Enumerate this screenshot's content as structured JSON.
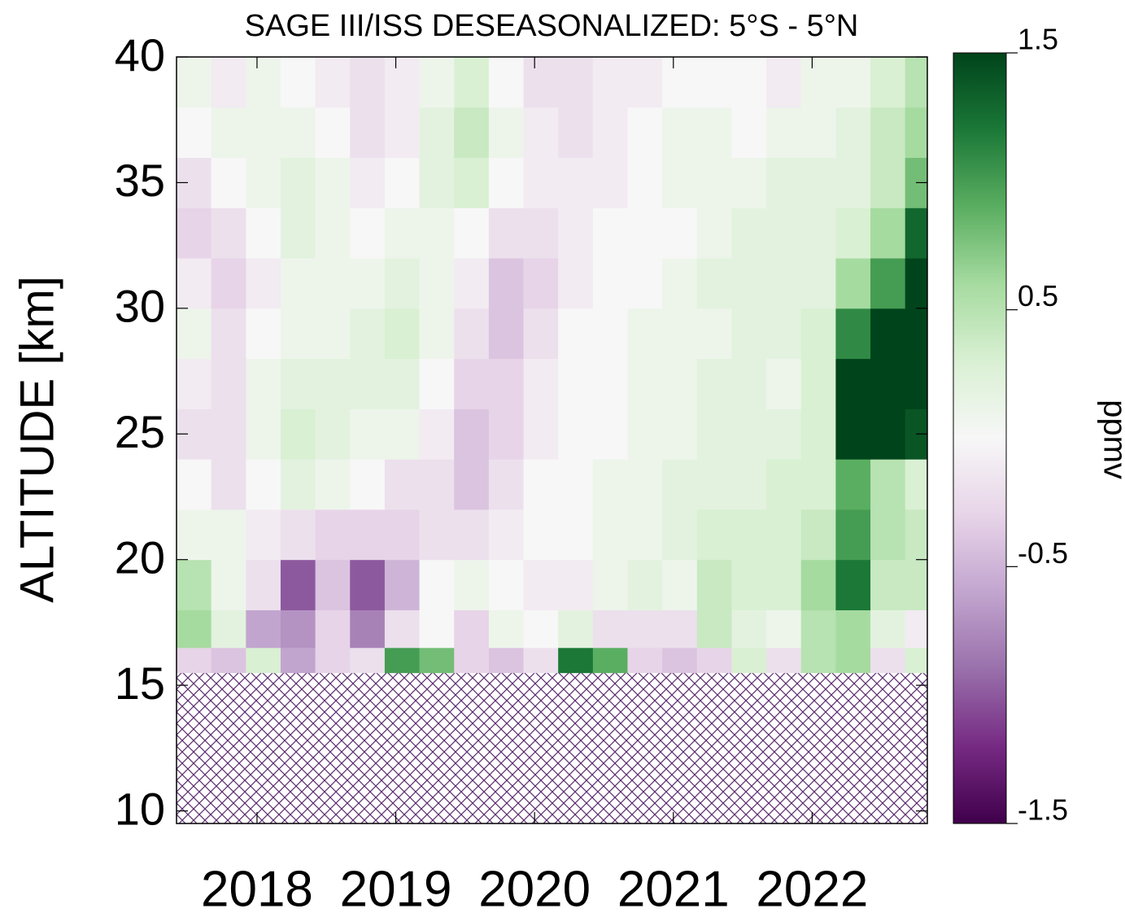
{
  "chart_data": {
    "type": "heatmap",
    "title": "SAGE III/ISS  DESEASONALIZED: 5°S - 5°N",
    "ylabel": "ALTITUDE [km]",
    "colorbar_label": "ppmv",
    "xlim": [
      2017.42,
      2022.83
    ],
    "xticks": [
      2018,
      2019,
      2020,
      2021,
      2022
    ],
    "ylim": [
      9.5,
      40
    ],
    "yticks": [
      10,
      15,
      20,
      25,
      30,
      35,
      40
    ],
    "clim": [
      -1.5,
      1.5
    ],
    "colorbar_ticks": [
      -1.5,
      -0.5,
      0.5,
      1.5
    ],
    "colormap": [
      "#40004b",
      "#762a83",
      "#9970ab",
      "#c2a5cf",
      "#e7d4e8",
      "#f7f7f7",
      "#d9f0d3",
      "#a6dba0",
      "#5aae61",
      "#1b7837",
      "#00441b"
    ],
    "null_hatch_color": "#5b2c6f",
    "x_edges": [
      2017.42,
      2017.67,
      2017.92,
      2018.17,
      2018.42,
      2018.67,
      2018.92,
      2019.17,
      2019.42,
      2019.67,
      2019.92,
      2020.17,
      2020.42,
      2020.67,
      2020.92,
      2021.17,
      2021.42,
      2021.67,
      2021.92,
      2022.17,
      2022.42,
      2022.67,
      2022.83
    ],
    "y_edges": [
      9.5,
      15.5,
      16.5,
      18,
      20,
      22,
      24,
      26,
      28,
      30,
      32,
      34,
      36,
      38,
      40
    ],
    "values": [
      [
        null,
        null,
        null,
        null,
        null,
        null,
        null,
        null,
        null,
        null,
        null,
        null,
        null,
        null,
        null,
        null,
        null,
        null,
        null,
        null,
        null,
        null
      ],
      [
        -0.3,
        -0.4,
        0.3,
        -0.6,
        -0.3,
        -0.2,
        1.0,
        0.8,
        -0.3,
        -0.4,
        -0.2,
        1.2,
        0.9,
        -0.3,
        -0.4,
        -0.3,
        0.3,
        -0.2,
        0.5,
        0.6,
        -0.2,
        0.3
      ],
      [
        0.6,
        0.2,
        -0.6,
        -0.7,
        -0.3,
        -0.8,
        -0.2,
        0,
        -0.3,
        0.1,
        0,
        0.2,
        -0.2,
        -0.2,
        -0.2,
        0.4,
        0.2,
        0.1,
        0.5,
        0.6,
        0.2,
        -0.1
      ],
      [
        0.5,
        0.1,
        -0.2,
        -1.0,
        -0.4,
        -1.0,
        -0.5,
        0,
        0.1,
        0,
        -0.1,
        -0.1,
        0.1,
        0.2,
        0.1,
        0.4,
        0.3,
        0.3,
        0.6,
        1.2,
        0.4,
        0.4
      ],
      [
        0.1,
        0.1,
        -0.1,
        -0.2,
        -0.3,
        -0.3,
        -0.3,
        -0.2,
        -0.2,
        -0.1,
        0,
        0,
        0.1,
        0.1,
        0.2,
        0.3,
        0.3,
        0.3,
        0.4,
        1.0,
        0.5,
        0.4
      ],
      [
        0,
        -0.2,
        0,
        0.2,
        0.1,
        0,
        -0.2,
        -0.2,
        -0.4,
        -0.2,
        0,
        0,
        0.1,
        0.1,
        0.2,
        0.2,
        0.2,
        0.3,
        0.3,
        0.9,
        0.5,
        0.3
      ],
      [
        -0.2,
        -0.2,
        0.1,
        0.3,
        0.2,
        0.1,
        0.1,
        -0.1,
        -0.4,
        -0.3,
        -0.1,
        0,
        0,
        0.1,
        0.1,
        0.2,
        0.2,
        0.2,
        0.3,
        1.5,
        1.5,
        1.4
      ],
      [
        -0.1,
        -0.2,
        0.1,
        0.2,
        0.2,
        0.2,
        0.2,
        0,
        -0.3,
        -0.3,
        -0.1,
        0,
        0,
        0.1,
        0.1,
        0.2,
        0.2,
        0.1,
        0.3,
        1.5,
        1.5,
        1.5
      ],
      [
        0.1,
        -0.2,
        0,
        0.1,
        0.1,
        0.2,
        0.3,
        0.1,
        -0.2,
        -0.4,
        -0.2,
        0,
        0,
        0.1,
        0.1,
        0.1,
        0.2,
        0.2,
        0.3,
        1.1,
        1.5,
        1.5
      ],
      [
        -0.1,
        -0.3,
        -0.1,
        0.1,
        0.1,
        0.1,
        0.2,
        0.1,
        -0.1,
        -0.4,
        -0.3,
        -0.1,
        0,
        0,
        0.1,
        0.2,
        0.2,
        0.2,
        0.2,
        0.6,
        1.0,
        1.5
      ],
      [
        -0.3,
        -0.2,
        0,
        0.2,
        0.1,
        0,
        0.1,
        0.1,
        0,
        -0.2,
        -0.2,
        -0.1,
        0,
        0,
        0,
        0.1,
        0.2,
        0.2,
        0.2,
        0.3,
        0.6,
        1.3
      ],
      [
        -0.2,
        0,
        0.1,
        0.2,
        0.1,
        -0.1,
        0,
        0.2,
        0.3,
        0,
        -0.1,
        -0.1,
        -0.1,
        0,
        0.1,
        0.1,
        0.1,
        0.2,
        0.2,
        0.2,
        0.4,
        0.8
      ],
      [
        0,
        0.1,
        0.1,
        0.1,
        0,
        -0.2,
        -0.1,
        0.2,
        0.4,
        0.1,
        -0.1,
        -0.2,
        -0.1,
        0,
        0.1,
        0.1,
        0,
        0.1,
        0.1,
        0.2,
        0.4,
        0.6
      ],
      [
        0.1,
        -0.1,
        0.1,
        0,
        -0.1,
        -0.2,
        -0.1,
        0.1,
        0.3,
        0,
        -0.2,
        -0.2,
        -0.1,
        -0.1,
        0,
        0,
        0,
        -0.1,
        0.1,
        0.1,
        0.3,
        0.5
      ]
    ]
  }
}
